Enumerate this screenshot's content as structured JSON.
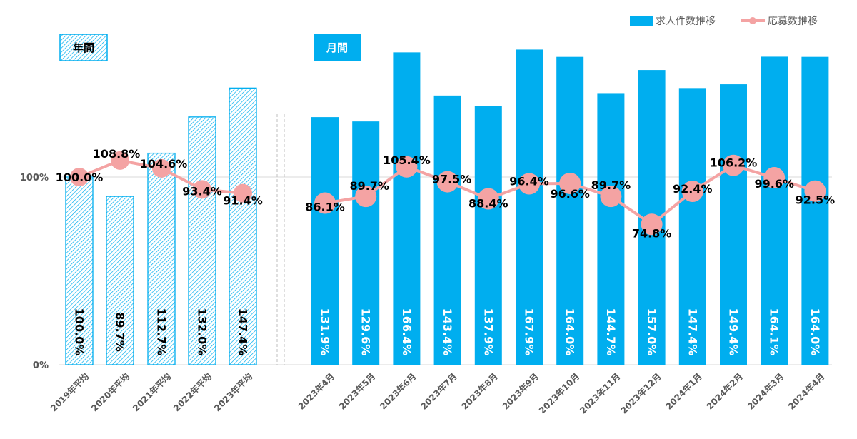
{
  "chart_data": {
    "type": "bar",
    "categories": [
      "2019年平均",
      "2020年平均",
      "2021年平均",
      "2022年平均",
      "2023年平均",
      "2023年4月",
      "2023年5月",
      "2023年6月",
      "2023年7月",
      "2023年8月",
      "2023年9月",
      "2023年10月",
      "2023年11月",
      "2023年12月",
      "2024年1月",
      "2024年2月",
      "2024年3月",
      "2024年4月"
    ],
    "groups": [
      {
        "label": "年間",
        "count": 5,
        "style": "hatched"
      },
      {
        "label": "月間",
        "count": 13,
        "style": "solid"
      }
    ],
    "series": [
      {
        "name": "求人件数推移",
        "kind": "bar",
        "values": [
          100.0,
          89.7,
          112.7,
          132.0,
          147.4,
          131.9,
          129.6,
          166.4,
          143.4,
          137.9,
          167.9,
          164.0,
          144.7,
          157.0,
          147.4,
          149.4,
          164.1,
          164.0
        ],
        "labels": [
          "100.0%",
          "89.7%",
          "112.7%",
          "132.0%",
          "147.4%",
          "131.9%",
          "129.6%",
          "166.4%",
          "143.4%",
          "137.9%",
          "167.9%",
          "164.0%",
          "144.7%",
          "157.0%",
          "147.4%",
          "149.4%",
          "164.1%",
          "164.0%"
        ]
      },
      {
        "name": "応募数推移",
        "kind": "line",
        "values": [
          100.0,
          108.8,
          104.6,
          93.4,
          91.4,
          86.1,
          89.7,
          105.4,
          97.5,
          88.4,
          96.4,
          96.6,
          89.7,
          74.8,
          92.4,
          106.2,
          99.6,
          92.5
        ],
        "labels": [
          "100.0%",
          "108.8%",
          "104.6%",
          "93.4%",
          "91.4%",
          "86.1%",
          "89.7%",
          "105.4%",
          "97.5%",
          "88.4%",
          "96.4%",
          "96.6%",
          "89.7%",
          "74.8%",
          "92.4%",
          "106.2%",
          "99.6%",
          "92.5%"
        ]
      }
    ],
    "yticks": [
      "0%",
      "100%"
    ],
    "ylim": [
      0,
      174
    ],
    "legend": "top-right",
    "colors": {
      "bar": "#00aeef",
      "line": "#f4a3a3",
      "text": "#000000",
      "axis": "#d9d9d9",
      "tick": "#595959"
    }
  }
}
